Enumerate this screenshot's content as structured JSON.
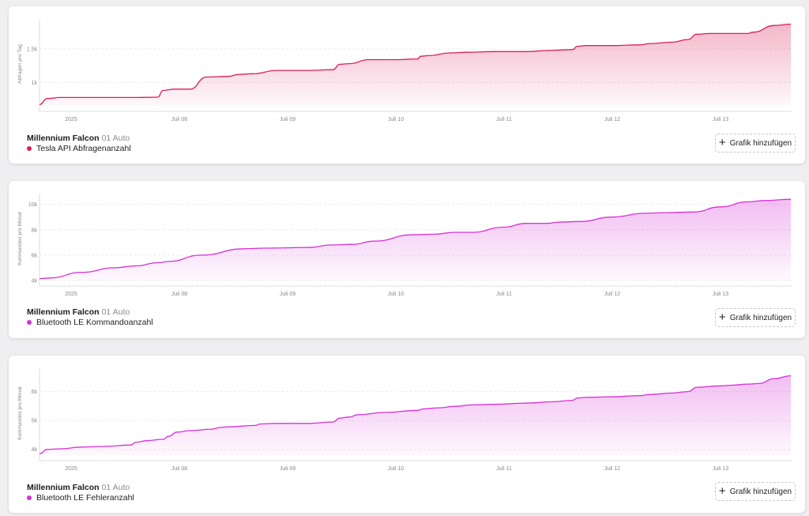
{
  "x_ticks": [
    "2025",
    "Juli 08",
    "Juli 09",
    "Juli 10",
    "Juli 11",
    "Juli 12",
    "Juli 13"
  ],
  "add_button_label": "Grafik hinzufügen",
  "icons": {
    "add": "plus-icon"
  },
  "cards": [
    {
      "car_name": "Millennium Falcon",
      "vehicle": "01 Auto",
      "series_label": "Tesla API Abfragenanzahl",
      "color": "#dc1e5a",
      "ylabel": "Abfragen pro Tag",
      "y_ticks": [
        "1k",
        "1.5k"
      ]
    },
    {
      "car_name": "Millennium Falcon",
      "vehicle": "01 Auto",
      "series_label": "Bluetooth LE Kommandoanzahl",
      "color": "#d631d6",
      "ylabel": "Kommandos pro Monat",
      "y_ticks": [
        "4k",
        "6k",
        "8k",
        "10k"
      ]
    },
    {
      "car_name": "Millennium Falcon",
      "vehicle": "01 Auto",
      "series_label": "Bluetooth LE Fehleranzahl",
      "color": "#d631d6",
      "ylabel": "Kommandos pro Monat",
      "y_ticks": [
        "4k",
        "5k",
        "6k"
      ]
    }
  ],
  "chart_data": [
    {
      "type": "area",
      "title": "Tesla API Abfragenanzahl",
      "ylabel": "Abfragen pro Tag",
      "xlabel": "",
      "x_tick_labels": [
        "2025",
        "Juli 08",
        "Juli 09",
        "Juli 10",
        "Juli 11",
        "Juli 12",
        "Juli 13"
      ],
      "x_range": [
        0,
        7
      ],
      "ylim": [
        650,
        1900
      ],
      "series": [
        {
          "x": [
            0,
            0.08,
            0.2,
            0.6,
            0.9,
            1.1,
            1.15,
            1.25,
            1.4,
            1.55,
            1.75,
            1.85,
            1.98,
            2.2,
            2.5,
            2.72,
            2.78,
            2.87,
            3.05,
            3.3,
            3.5,
            3.53,
            3.6,
            3.8,
            3.95,
            4.2,
            4.5,
            4.75,
            4.93,
            4.98,
            5.05,
            5.3,
            5.55,
            5.65,
            5.85,
            6.0,
            6.08,
            6.2,
            6.4,
            6.55,
            6.6,
            6.8,
            6.95
          ],
          "y": [
            670,
            760,
            775,
            775,
            775,
            780,
            880,
            900,
            900,
            1080,
            1090,
            1120,
            1130,
            1180,
            1180,
            1190,
            1270,
            1280,
            1340,
            1340,
            1350,
            1390,
            1400,
            1440,
            1450,
            1460,
            1460,
            1480,
            1490,
            1540,
            1550,
            1550,
            1560,
            1580,
            1600,
            1640,
            1720,
            1730,
            1730,
            1730,
            1750,
            1850,
            1870
          ]
        }
      ]
    },
    {
      "type": "area",
      "title": "Bluetooth LE Kommandoanzahl",
      "ylabel": "Kommandos pro Monat",
      "xlabel": "",
      "x_tick_labels": [
        "2025",
        "Juli 08",
        "Juli 09",
        "Juli 10",
        "Juli 11",
        "Juli 12",
        "Juli 13"
      ],
      "x_range": [
        0,
        7
      ],
      "ylim": [
        4000,
        10600
      ],
      "series": [
        {
          "x": [
            0,
            0.1,
            0.4,
            0.7,
            0.9,
            1.1,
            1.2,
            1.5,
            1.9,
            2.1,
            2.5,
            2.7,
            2.9,
            3.1,
            3.45,
            3.65,
            3.85,
            4.0,
            4.3,
            4.5,
            4.7,
            4.8,
            5.0,
            5.3,
            5.6,
            5.8,
            6.05,
            6.3,
            6.55,
            6.7,
            6.95
          ],
          "y": [
            4150,
            4200,
            4650,
            5000,
            5150,
            5400,
            5500,
            6000,
            6500,
            6550,
            6600,
            6800,
            6850,
            7100,
            7600,
            7650,
            7800,
            7800,
            8200,
            8500,
            8500,
            8600,
            8650,
            9000,
            9300,
            9350,
            9400,
            9800,
            10200,
            10300,
            10400
          ]
        }
      ]
    },
    {
      "type": "area",
      "title": "Bluetooth LE Fehleranzahl",
      "ylabel": "Kommandos pro Monat",
      "xlabel": "",
      "x_tick_labels": [
        "2025",
        "Juli 08",
        "Juli 09",
        "Juli 10",
        "Juli 11",
        "Juli 12",
        "Juli 13"
      ],
      "x_range": [
        0,
        7
      ],
      "ylim": [
        3800,
        6700
      ],
      "series": [
        {
          "x": [
            0,
            0.08,
            0.2,
            0.4,
            0.6,
            0.85,
            0.9,
            1.0,
            1.15,
            1.2,
            1.28,
            1.4,
            1.6,
            1.68,
            1.75,
            2.0,
            2.05,
            2.2,
            2.5,
            2.72,
            2.78,
            2.87,
            2.95,
            3.2,
            3.5,
            3.55,
            3.7,
            3.85,
            4.0,
            4.2,
            4.5,
            4.75,
            4.93,
            4.98,
            5.05,
            5.3,
            5.55,
            5.65,
            5.85,
            6.0,
            6.08,
            6.3,
            6.4,
            6.55,
            6.65,
            6.8,
            6.95
          ],
          "y": [
            3850,
            4000,
            4020,
            4080,
            4100,
            4150,
            4250,
            4300,
            4350,
            4450,
            4600,
            4650,
            4700,
            4760,
            4780,
            4830,
            4880,
            4900,
            4900,
            4950,
            5080,
            5120,
            5200,
            5280,
            5350,
            5400,
            5440,
            5490,
            5540,
            5560,
            5600,
            5650,
            5700,
            5780,
            5800,
            5820,
            5860,
            5900,
            5950,
            6000,
            6150,
            6200,
            6220,
            6260,
            6280,
            6450,
            6550
          ]
        }
      ]
    }
  ]
}
